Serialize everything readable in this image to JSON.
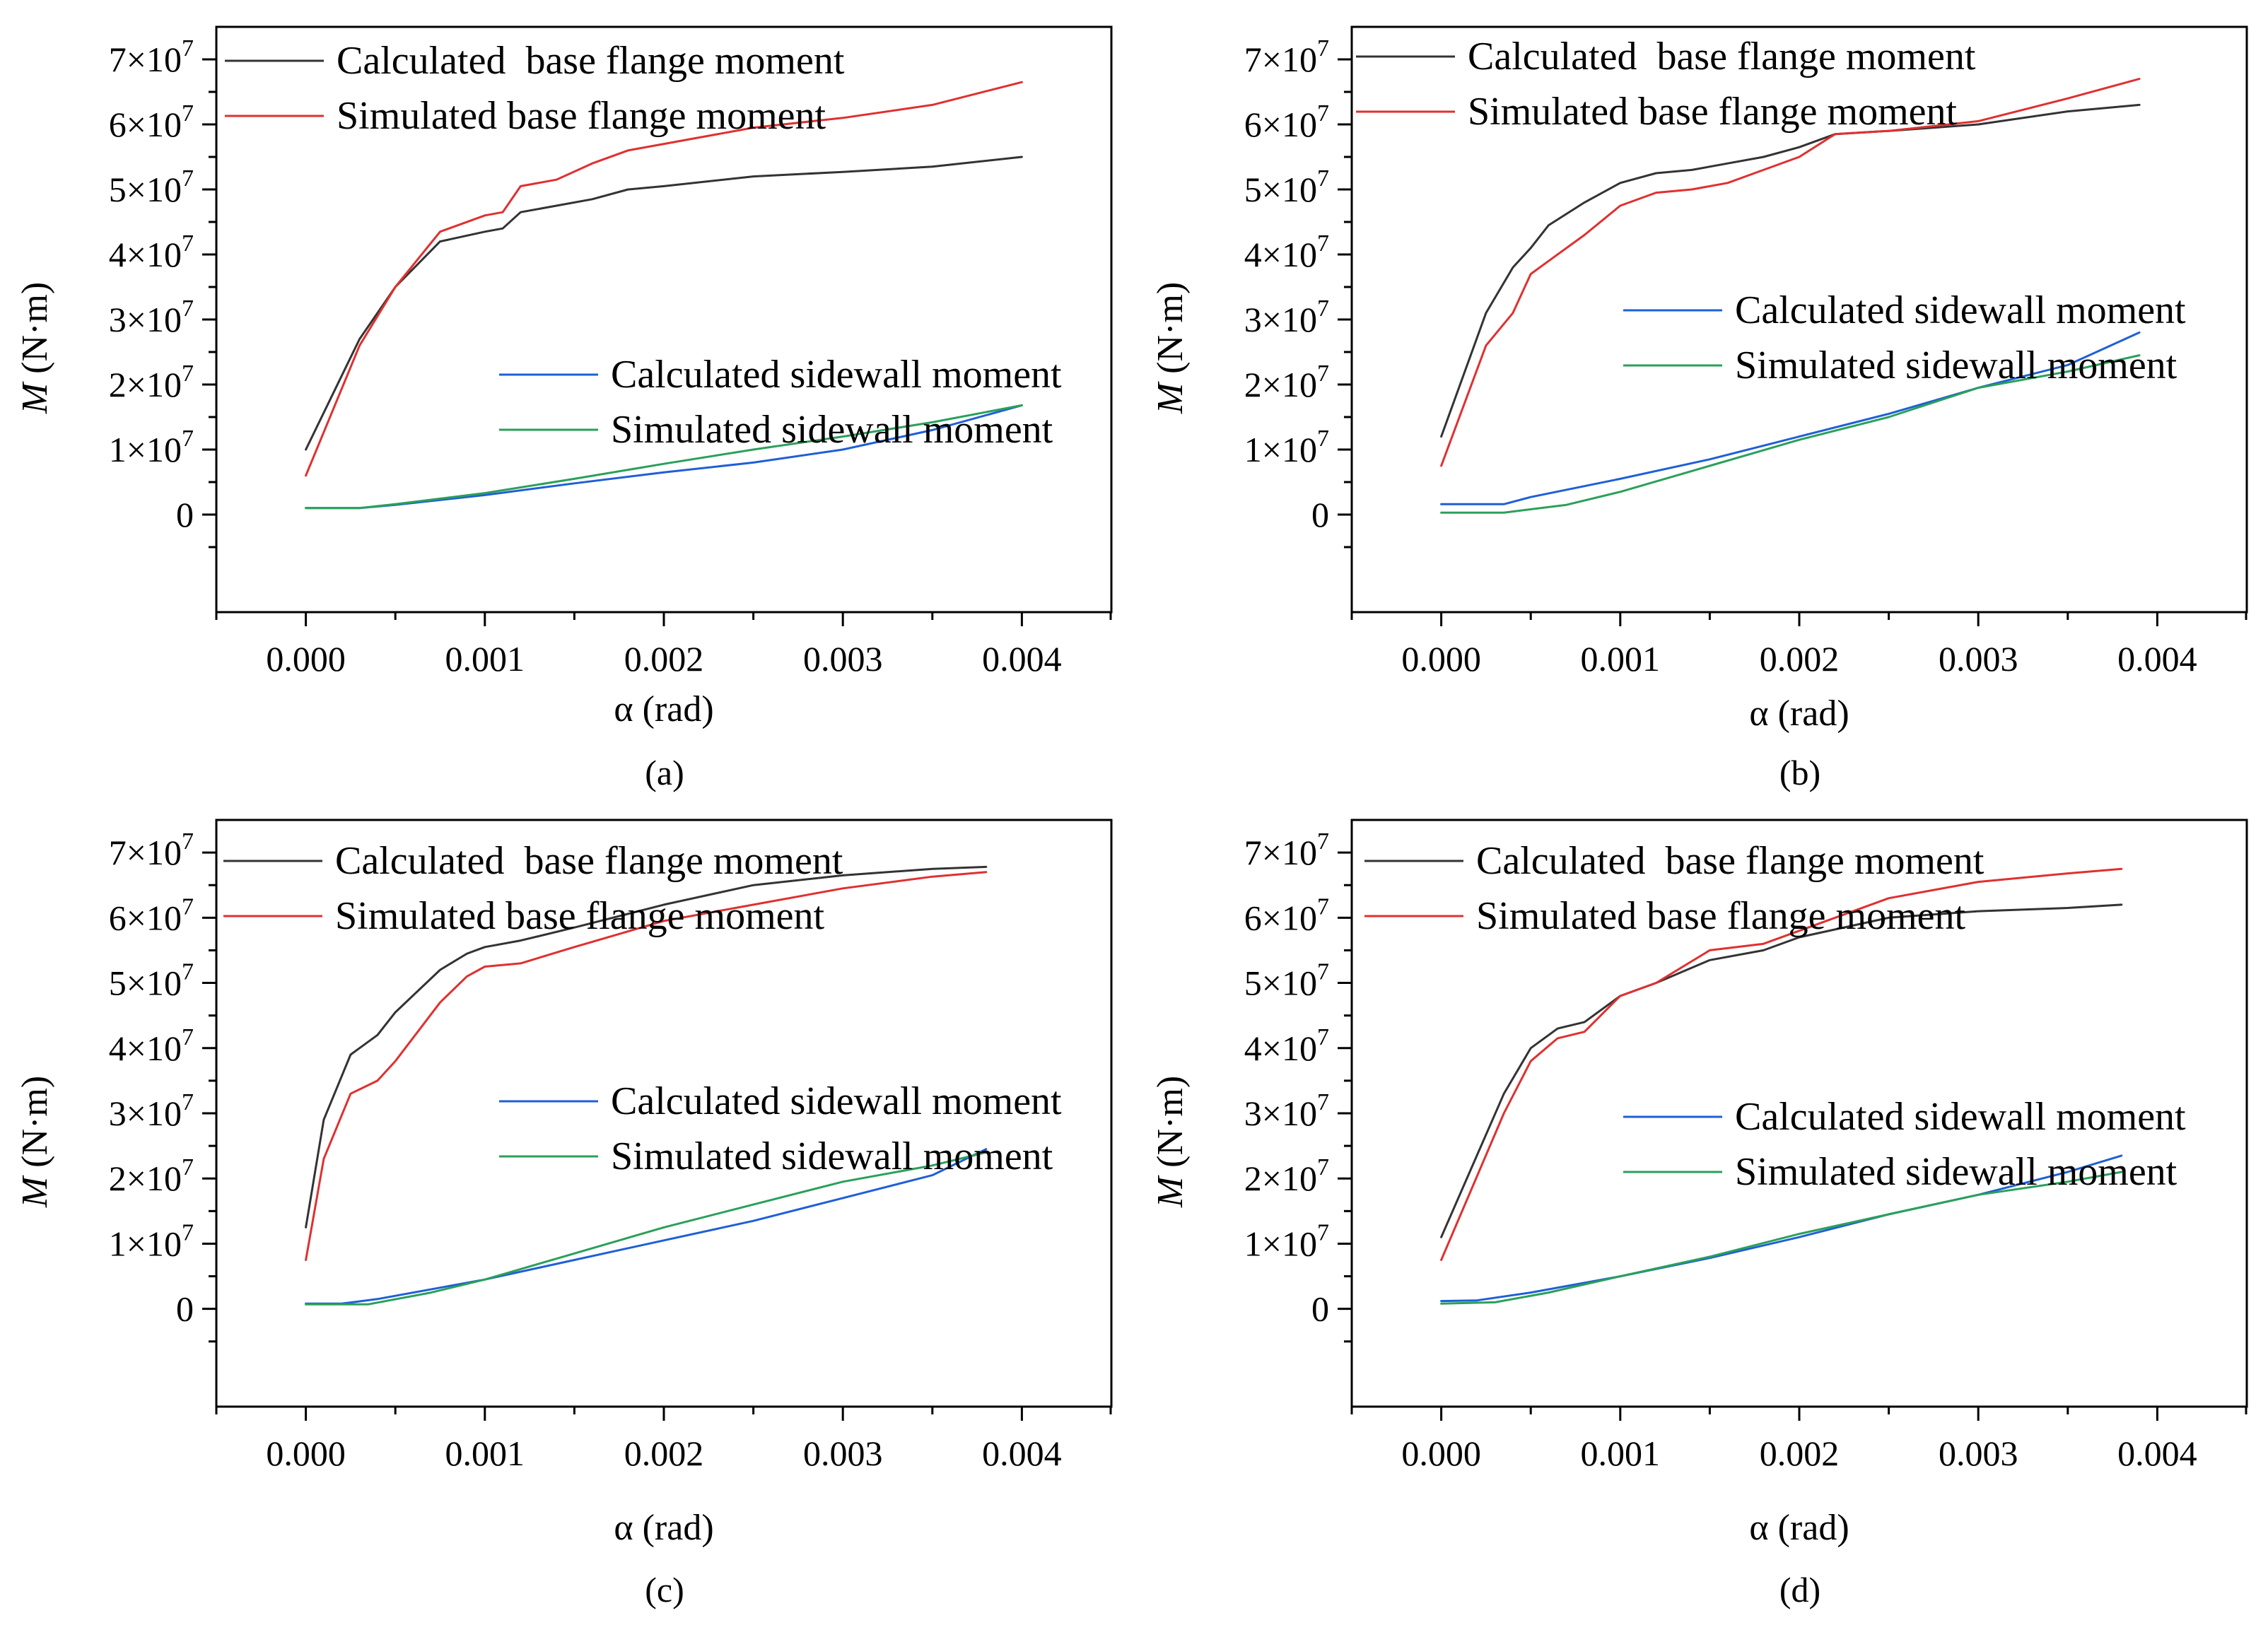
{
  "chart_data": [
    {
      "type": "line",
      "panel": "(a)",
      "xlabel": "α (rad)",
      "ylabel_italic": "M",
      "ylabel_unit": " (N·m)",
      "xlim": [
        -0.0005,
        0.0045
      ],
      "ylim": [
        -15000000,
        75000000
      ],
      "xticks": [
        0.0,
        0.001,
        0.002,
        0.003,
        0.004
      ],
      "xtick_labels": [
        "0.000",
        "0.001",
        "0.002",
        "0.003",
        "0.004"
      ],
      "yticks": [
        0,
        10000000,
        20000000,
        30000000,
        40000000,
        50000000,
        60000000,
        70000000
      ],
      "ytick_labels": [
        {
          "base": "0",
          "exp": ""
        },
        {
          "base": "1×10",
          "exp": "7"
        },
        {
          "base": "2×10",
          "exp": "7"
        },
        {
          "base": "3×10",
          "exp": "7"
        },
        {
          "base": "4×10",
          "exp": "7"
        },
        {
          "base": "5×10",
          "exp": "7"
        },
        {
          "base": "6×10",
          "exp": "7"
        },
        {
          "base": "7×10",
          "exp": "7"
        }
      ],
      "series": [
        {
          "name": "Calculated  base flange moment",
          "color": "#333333",
          "x": [
            0.0,
            0.0003,
            0.0005,
            0.00075,
            0.001,
            0.0011,
            0.0012,
            0.0014,
            0.0016,
            0.0018,
            0.002,
            0.0025,
            0.003,
            0.0035,
            0.004
          ],
          "y": [
            10000000,
            27000000,
            35000000,
            42000000,
            43500000,
            44000000,
            46500000,
            47500000,
            48500000,
            50000000,
            50500000,
            52000000,
            52700000,
            53500000,
            55000000
          ]
        },
        {
          "name": "Simulated base flange moment",
          "color": "#e03030",
          "x": [
            0.0,
            0.0003,
            0.0005,
            0.00075,
            0.001,
            0.0011,
            0.0012,
            0.0014,
            0.0016,
            0.0018,
            0.002,
            0.0025,
            0.003,
            0.0035,
            0.004
          ],
          "y": [
            6000000,
            26000000,
            35000000,
            43500000,
            46000000,
            46500000,
            50500000,
            51500000,
            54000000,
            56000000,
            57000000,
            59500000,
            61000000,
            63000000,
            66500000
          ]
        },
        {
          "name": "Calculated sidewall moment",
          "color": "#1f5fd6",
          "x": [
            0.0,
            0.0003,
            0.0005,
            0.001,
            0.0015,
            0.002,
            0.0025,
            0.003,
            0.0035,
            0.004
          ],
          "y": [
            1000000,
            1000000,
            1500000,
            3000000,
            4800000,
            6500000,
            8000000,
            10000000,
            13000000,
            16800000
          ]
        },
        {
          "name": "Simulated sidewall moment",
          "color": "#2aa05a",
          "x": [
            0.0,
            0.0003,
            0.0005,
            0.001,
            0.0015,
            0.002,
            0.0025,
            0.003,
            0.0035,
            0.004
          ],
          "y": [
            1000000,
            1000000,
            1600000,
            3300000,
            5500000,
            7800000,
            10000000,
            12000000,
            14200000,
            16800000
          ]
        }
      ]
    },
    {
      "type": "line",
      "panel": "(b)",
      "xlabel": "α (rad)",
      "ylabel_italic": "M",
      "ylabel_unit": " (N·m)",
      "xlim": [
        -0.0005,
        0.0045
      ],
      "ylim": [
        -15000000,
        75000000
      ],
      "xticks": [
        0.0,
        0.001,
        0.002,
        0.003,
        0.004
      ],
      "xtick_labels": [
        "0.000",
        "0.001",
        "0.002",
        "0.003",
        "0.004"
      ],
      "yticks": [
        0,
        10000000,
        20000000,
        30000000,
        40000000,
        50000000,
        60000000,
        70000000
      ],
      "ytick_labels": [
        {
          "base": "0",
          "exp": ""
        },
        {
          "base": "1×10",
          "exp": "7"
        },
        {
          "base": "2×10",
          "exp": "7"
        },
        {
          "base": "3×10",
          "exp": "7"
        },
        {
          "base": "4×10",
          "exp": "7"
        },
        {
          "base": "5×10",
          "exp": "7"
        },
        {
          "base": "6×10",
          "exp": "7"
        },
        {
          "base": "7×10",
          "exp": "7"
        }
      ],
      "series": [
        {
          "name": "Calculated  base flange moment",
          "color": "#333333",
          "x": [
            0.0,
            0.00025,
            0.0004,
            0.0005,
            0.0006,
            0.0008,
            0.001,
            0.0012,
            0.0014,
            0.0016,
            0.0018,
            0.002,
            0.0022,
            0.0025,
            0.003,
            0.0035,
            0.0039
          ],
          "y": [
            12000000,
            31000000,
            38000000,
            41000000,
            44500000,
            48000000,
            51000000,
            52500000,
            53000000,
            54000000,
            55000000,
            56500000,
            58500000,
            59000000,
            60000000,
            62000000,
            63000000
          ]
        },
        {
          "name": "Simulated base flange moment",
          "color": "#e03030",
          "x": [
            0.0,
            0.00025,
            0.0004,
            0.0005,
            0.0006,
            0.0008,
            0.001,
            0.0012,
            0.0014,
            0.0016,
            0.0018,
            0.002,
            0.0022,
            0.0025,
            0.003,
            0.0035,
            0.0039
          ],
          "y": [
            7500000,
            26000000,
            31000000,
            37000000,
            39000000,
            43000000,
            47500000,
            49500000,
            50000000,
            51000000,
            53000000,
            55000000,
            58500000,
            59000000,
            60500000,
            64000000,
            67000000
          ]
        },
        {
          "name": "Calculated sidewall moment",
          "color": "#1f5fd6",
          "x": [
            0.0,
            0.00035,
            0.0005,
            0.001,
            0.0015,
            0.002,
            0.0025,
            0.003,
            0.0035,
            0.0039
          ],
          "y": [
            1600000,
            1600000,
            2700000,
            5500000,
            8500000,
            12000000,
            15500000,
            19500000,
            23000000,
            28000000
          ]
        },
        {
          "name": "Simulated sidewall moment",
          "color": "#2aa05a",
          "x": [
            0.0,
            0.00035,
            0.0007,
            0.001,
            0.0015,
            0.002,
            0.0025,
            0.003,
            0.0035,
            0.0039
          ],
          "y": [
            300000,
            300000,
            1500000,
            3500000,
            7500000,
            11500000,
            15000000,
            19500000,
            22000000,
            24500000
          ]
        }
      ]
    },
    {
      "type": "line",
      "panel": "(c)",
      "xlabel": "α (rad)",
      "ylabel_italic": "M",
      "ylabel_unit": " (N·m)",
      "xlim": [
        -0.0005,
        0.0045
      ],
      "ylim": [
        -15000000,
        75000000
      ],
      "xticks": [
        0.0,
        0.001,
        0.002,
        0.003,
        0.004
      ],
      "xtick_labels": [
        "0.000",
        "0.001",
        "0.002",
        "0.003",
        "0.004"
      ],
      "yticks": [
        0,
        10000000,
        20000000,
        30000000,
        40000000,
        50000000,
        60000000,
        70000000
      ],
      "ytick_labels": [
        {
          "base": "0",
          "exp": ""
        },
        {
          "base": "1×10",
          "exp": "7"
        },
        {
          "base": "2×10",
          "exp": "7"
        },
        {
          "base": "3×10",
          "exp": "7"
        },
        {
          "base": "4×10",
          "exp": "7"
        },
        {
          "base": "5×10",
          "exp": "7"
        },
        {
          "base": "6×10",
          "exp": "7"
        },
        {
          "base": "7×10",
          "exp": "7"
        }
      ],
      "series": [
        {
          "name": "Calculated  base flange moment",
          "color": "#333333",
          "x": [
            0.0,
            0.0001,
            0.00025,
            0.0004,
            0.0005,
            0.00075,
            0.0009,
            0.001,
            0.0012,
            0.0015,
            0.002,
            0.0025,
            0.003,
            0.0035,
            0.0038
          ],
          "y": [
            12500000,
            29000000,
            39000000,
            42000000,
            45500000,
            52000000,
            54500000,
            55500000,
            56500000,
            58500000,
            62000000,
            65000000,
            66500000,
            67500000,
            67800000
          ]
        },
        {
          "name": "Simulated base flange moment",
          "color": "#e03030",
          "x": [
            0.0,
            0.0001,
            0.00025,
            0.0004,
            0.0005,
            0.00075,
            0.0009,
            0.001,
            0.0012,
            0.0015,
            0.002,
            0.0025,
            0.003,
            0.0035,
            0.0038
          ],
          "y": [
            7500000,
            23000000,
            33000000,
            35000000,
            38000000,
            47000000,
            51000000,
            52500000,
            53000000,
            55500000,
            59500000,
            62000000,
            64500000,
            66300000,
            67000000
          ]
        },
        {
          "name": "Calculated sidewall moment",
          "color": "#1f5fd6",
          "x": [
            0.0,
            0.0002,
            0.0004,
            0.001,
            0.0015,
            0.002,
            0.0025,
            0.003,
            0.0035,
            0.0038
          ],
          "y": [
            800000,
            800000,
            1500000,
            4500000,
            7500000,
            10500000,
            13500000,
            17000000,
            20500000,
            24500000
          ]
        },
        {
          "name": "Simulated sidewall moment",
          "color": "#2aa05a",
          "x": [
            0.0,
            0.00035,
            0.0007,
            0.001,
            0.0015,
            0.002,
            0.0025,
            0.003,
            0.0035,
            0.0038
          ],
          "y": [
            700000,
            700000,
            2500000,
            4500000,
            8500000,
            12500000,
            16000000,
            19500000,
            22000000,
            24000000
          ]
        }
      ]
    },
    {
      "type": "line",
      "panel": "(d)",
      "xlabel": "α (rad)",
      "ylabel_italic": "M",
      "ylabel_unit": " (N·m)",
      "xlim": [
        -0.0005,
        0.0045
      ],
      "ylim": [
        -15000000,
        75000000
      ],
      "xticks": [
        0.0,
        0.001,
        0.002,
        0.003,
        0.004
      ],
      "xtick_labels": [
        "0.000",
        "0.001",
        "0.002",
        "0.003",
        "0.004"
      ],
      "yticks": [
        0,
        10000000,
        20000000,
        30000000,
        40000000,
        50000000,
        60000000,
        70000000
      ],
      "ytick_labels": [
        {
          "base": "0",
          "exp": ""
        },
        {
          "base": "1×10",
          "exp": "7"
        },
        {
          "base": "2×10",
          "exp": "7"
        },
        {
          "base": "3×10",
          "exp": "7"
        },
        {
          "base": "4×10",
          "exp": "7"
        },
        {
          "base": "5×10",
          "exp": "7"
        },
        {
          "base": "6×10",
          "exp": "7"
        },
        {
          "base": "7×10",
          "exp": "7"
        }
      ],
      "series": [
        {
          "name": "Calculated  base flange moment",
          "color": "#333333",
          "x": [
            0.0,
            0.00035,
            0.0005,
            0.00065,
            0.0008,
            0.001,
            0.0012,
            0.0015,
            0.0018,
            0.002,
            0.0025,
            0.003,
            0.0035,
            0.0038
          ],
          "y": [
            11000000,
            33000000,
            40000000,
            43000000,
            44000000,
            48000000,
            50000000,
            53500000,
            55000000,
            57000000,
            60000000,
            61000000,
            61500000,
            62000000
          ]
        },
        {
          "name": "Simulated base flange moment",
          "color": "#e03030",
          "x": [
            0.0,
            0.00035,
            0.0005,
            0.00065,
            0.0008,
            0.001,
            0.0012,
            0.0015,
            0.0018,
            0.002,
            0.0025,
            0.003,
            0.0035,
            0.0038
          ],
          "y": [
            7500000,
            30000000,
            38000000,
            41500000,
            42500000,
            48000000,
            50000000,
            55000000,
            56000000,
            58000000,
            63000000,
            65500000,
            66800000,
            67500000
          ]
        },
        {
          "name": "Calculated sidewall moment",
          "color": "#1f5fd6",
          "x": [
            0.0,
            0.0002,
            0.0005,
            0.001,
            0.0015,
            0.002,
            0.0025,
            0.003,
            0.0035,
            0.0038
          ],
          "y": [
            1200000,
            1300000,
            2500000,
            5000000,
            7800000,
            11000000,
            14500000,
            17500000,
            21000000,
            23500000
          ]
        },
        {
          "name": "Simulated sidewall moment",
          "color": "#2aa05a",
          "x": [
            0.0,
            0.0003,
            0.0006,
            0.001,
            0.0015,
            0.002,
            0.0025,
            0.003,
            0.0035,
            0.0038
          ],
          "y": [
            800000,
            1000000,
            2500000,
            5000000,
            8000000,
            11500000,
            14500000,
            17500000,
            19500000,
            21000000
          ]
        }
      ]
    }
  ]
}
